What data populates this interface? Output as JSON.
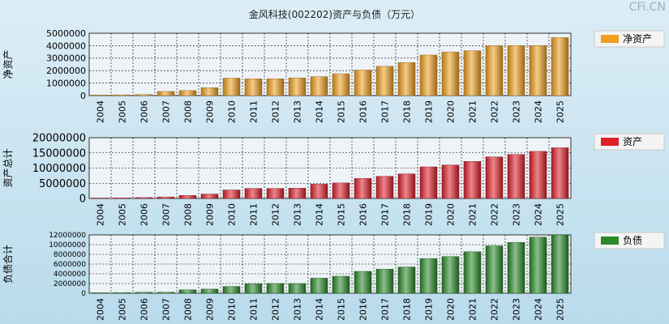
{
  "title": "金风科技(002202)资产与负债（万元）",
  "watermark": "CFi.CN",
  "chart_data": [
    {
      "type": "bar",
      "ylabel": "净资产",
      "legend": "净资产",
      "legend_position": "right",
      "color": "#f0a020",
      "ylim": [
        0,
        5000000
      ],
      "yticks": [
        0,
        1000000,
        2000000,
        3000000,
        4000000,
        5000000
      ],
      "grid": true,
      "categories": [
        "2004",
        "2005",
        "2006",
        "2007",
        "2008",
        "2009",
        "2010",
        "2011",
        "2012",
        "2013",
        "2014",
        "2015",
        "2016",
        "2017",
        "2018",
        "2019",
        "2020",
        "2021",
        "2022",
        "2023",
        "2024",
        "2025"
      ],
      "values": [
        50000,
        60000,
        80000,
        330000,
        400000,
        630000,
        1400000,
        1350000,
        1350000,
        1420000,
        1520000,
        1750000,
        2050000,
        2350000,
        2650000,
        3250000,
        3500000,
        3600000,
        4000000,
        4000000,
        4000000,
        4650000
      ]
    },
    {
      "type": "bar",
      "ylabel": "资产总计",
      "legend": "资产",
      "legend_position": "right",
      "color": "#e0202a",
      "ylim": [
        0,
        20000000
      ],
      "yticks": [
        0,
        5000000,
        10000000,
        15000000,
        20000000
      ],
      "grid": true,
      "categories": [
        "2004",
        "2005",
        "2006",
        "2007",
        "2008",
        "2009",
        "2010",
        "2011",
        "2012",
        "2013",
        "2014",
        "2015",
        "2016",
        "2017",
        "2018",
        "2019",
        "2020",
        "2021",
        "2022",
        "2023",
        "2024",
        "2025"
      ],
      "values": [
        150000,
        200000,
        300000,
        500000,
        1000000,
        1450000,
        2800000,
        3300000,
        3300000,
        3400000,
        4700000,
        5100000,
        6600000,
        7300000,
        8100000,
        10400000,
        11000000,
        12200000,
        13700000,
        14500000,
        15500000,
        16700000
      ]
    },
    {
      "type": "bar",
      "ylabel": "负债合计",
      "legend": "负债",
      "legend_position": "right",
      "color": "#2a8a2a",
      "ylim": [
        0,
        12000000
      ],
      "yticks": [
        0,
        2000000,
        4000000,
        6000000,
        8000000,
        10000000,
        12000000
      ],
      "grid": true,
      "categories": [
        "2004",
        "2005",
        "2006",
        "2007",
        "2008",
        "2009",
        "2010",
        "2011",
        "2012",
        "2013",
        "2014",
        "2015",
        "2016",
        "2017",
        "2018",
        "2019",
        "2020",
        "2021",
        "2022",
        "2023",
        "2024",
        "2025"
      ],
      "values": [
        100000,
        140000,
        200000,
        200000,
        700000,
        850000,
        1400000,
        1950000,
        2000000,
        1980000,
        3100000,
        3500000,
        4500000,
        4950000,
        5400000,
        7150000,
        7550000,
        8550000,
        9750000,
        10450000,
        11550000,
        12000000
      ]
    }
  ]
}
